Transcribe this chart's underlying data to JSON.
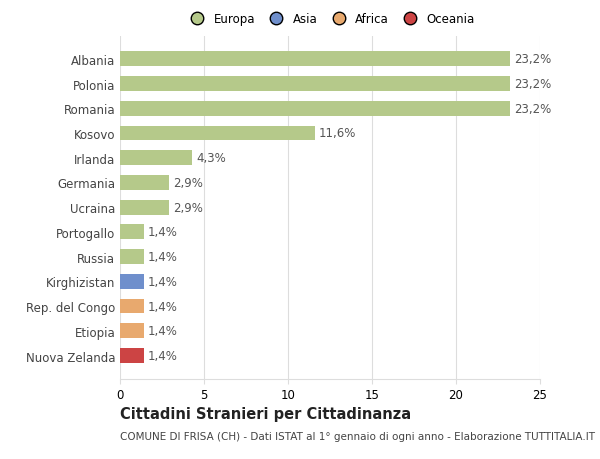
{
  "countries": [
    "Albania",
    "Polonia",
    "Romania",
    "Kosovo",
    "Irlanda",
    "Germania",
    "Ucraina",
    "Portogallo",
    "Russia",
    "Kirghizistan",
    "Rep. del Congo",
    "Etiopia",
    "Nuova Zelanda"
  ],
  "values": [
    23.2,
    23.2,
    23.2,
    11.6,
    4.3,
    2.9,
    2.9,
    1.4,
    1.4,
    1.4,
    1.4,
    1.4,
    1.4
  ],
  "labels": [
    "23,2%",
    "23,2%",
    "23,2%",
    "11,6%",
    "4,3%",
    "2,9%",
    "2,9%",
    "1,4%",
    "1,4%",
    "1,4%",
    "1,4%",
    "1,4%",
    "1,4%"
  ],
  "colors": [
    "#b5c98a",
    "#b5c98a",
    "#b5c98a",
    "#b5c98a",
    "#b5c98a",
    "#b5c98a",
    "#b5c98a",
    "#b5c98a",
    "#b5c98a",
    "#6f8fcc",
    "#e8a96e",
    "#e8a96e",
    "#cc4444"
  ],
  "legend_labels": [
    "Europa",
    "Asia",
    "Africa",
    "Oceania"
  ],
  "legend_colors": [
    "#b5c98a",
    "#6f8fcc",
    "#e8a96e",
    "#cc4444"
  ],
  "title": "Cittadini Stranieri per Cittadinanza",
  "subtitle": "COMUNE DI FRISA (CH) - Dati ISTAT al 1° gennaio di ogni anno - Elaborazione TUTTITALIA.IT",
  "xlim": [
    0,
    25
  ],
  "xticks": [
    0,
    5,
    10,
    15,
    20,
    25
  ],
  "bg_color": "#ffffff",
  "grid_color": "#dddddd",
  "bar_height": 0.6,
  "label_fontsize": 8.5,
  "tick_fontsize": 8.5,
  "title_fontsize": 10.5,
  "subtitle_fontsize": 7.5,
  "value_color": "#555555"
}
